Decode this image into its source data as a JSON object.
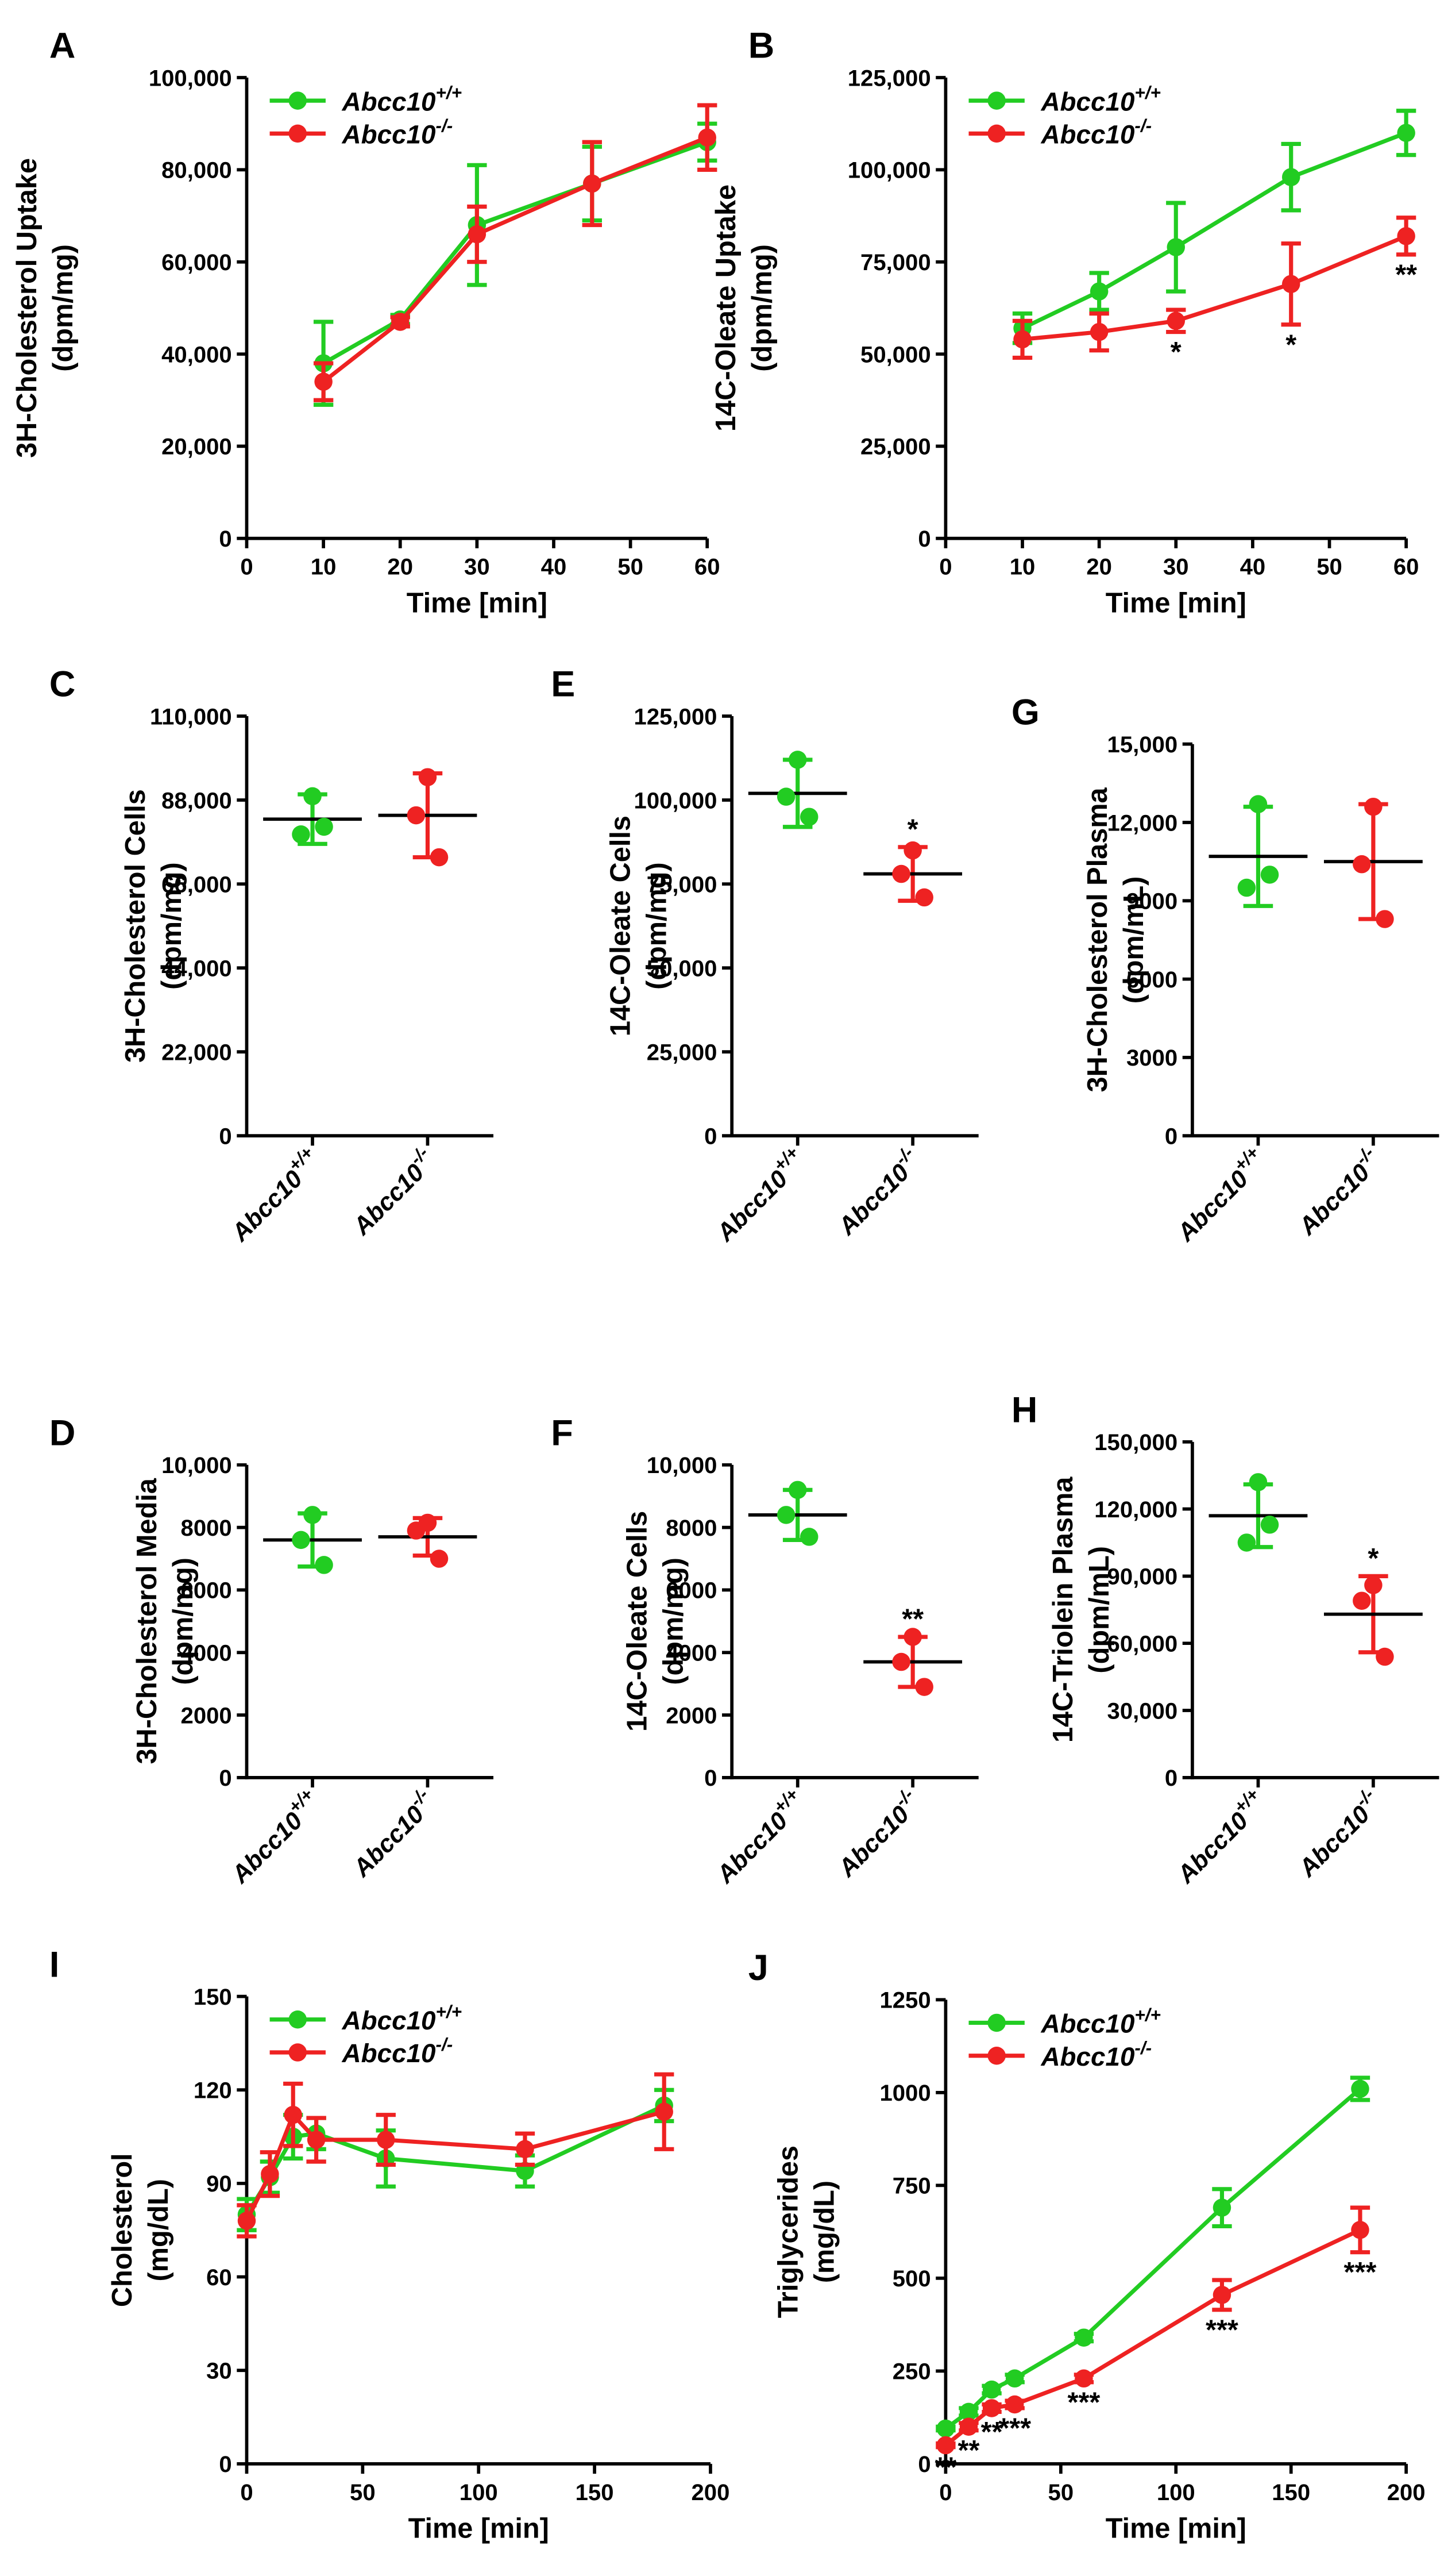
{
  "chart_data": [
    {
      "type": "line",
      "label": "A",
      "ylabel": [
        "3H-Cholesterol Uptake",
        "(dpm/mg)"
      ],
      "xlabel": "Time [min]",
      "x": [
        10,
        20,
        30,
        45,
        60
      ],
      "xlim": [
        0,
        60
      ],
      "xticks": [
        0,
        10,
        20,
        30,
        40,
        50,
        60
      ],
      "ylim": [
        0,
        100000
      ],
      "yticks": [
        0,
        {
          "value": 20000,
          "label": "20,000"
        },
        {
          "value": 40000,
          "label": "40,000"
        },
        {
          "value": 60000,
          "label": "60,000"
        },
        {
          "value": 80000,
          "label": "80,000"
        },
        {
          "value": 100000,
          "label": "100,000"
        }
      ],
      "series": [
        {
          "name": "Abcc10+/+",
          "color": "#22cc22",
          "values": [
            38000,
            47500,
            68000,
            77000,
            86000
          ],
          "errors": [
            9000,
            1000,
            13000,
            8000,
            4000
          ]
        },
        {
          "name": "Abcc10-/-",
          "color": "#ee2222",
          "values": [
            34000,
            47000,
            66000,
            77000,
            87000
          ],
          "errors": [
            4000,
            1000,
            6000,
            9000,
            7000
          ]
        }
      ]
    },
    {
      "type": "line",
      "label": "B",
      "ylabel": [
        "14C-Oleate Uptake",
        "(dpm/mg)"
      ],
      "xlabel": "Time [min]",
      "x": [
        10,
        20,
        30,
        45,
        60
      ],
      "xlim": [
        0,
        60
      ],
      "xticks": [
        0,
        10,
        20,
        30,
        40,
        50,
        60
      ],
      "ylim": [
        0,
        125000
      ],
      "yticks": [
        0,
        {
          "value": 25000,
          "label": "25,000"
        },
        {
          "value": 50000,
          "label": "50,000"
        },
        {
          "value": 75000,
          "label": "75,000"
        },
        {
          "value": 100000,
          "label": "100,000"
        },
        {
          "value": 125000,
          "label": "125,000"
        }
      ],
      "series": [
        {
          "name": "Abcc10+/+",
          "color": "#22cc22",
          "values": [
            57000,
            67000,
            79000,
            98000,
            110000
          ],
          "errors": [
            4000,
            5000,
            12000,
            9000,
            6000
          ]
        },
        {
          "name": "Abcc10-/-",
          "color": "#ee2222",
          "values": [
            54000,
            56000,
            59000,
            69000,
            82000
          ],
          "errors": [
            5000,
            5000,
            3000,
            11000,
            5000
          ],
          "annotations": [
            null,
            null,
            "*",
            "*",
            "**"
          ]
        }
      ]
    },
    {
      "type": "dot",
      "label": "C",
      "ylabel": [
        "3H-Cholesterol Cells",
        "(dpm/mg)"
      ],
      "categories": [
        "Abcc10+/+",
        "Abcc10-/-"
      ],
      "ylim": [
        0,
        110000
      ],
      "yticks": [
        0,
        {
          "value": 22000,
          "label": "22,000"
        },
        {
          "value": 44000,
          "label": "44,000"
        },
        {
          "value": 66000,
          "label": "66,000"
        },
        {
          "value": 88000,
          "label": "88,000"
        },
        {
          "value": 110000,
          "label": "110,000"
        }
      ],
      "groups": [
        {
          "color": "#22cc22",
          "points": [
            89000,
            79000,
            81000
          ],
          "mean": 83000,
          "sd": 6500
        },
        {
          "color": "#ee2222",
          "points": [
            94000,
            84000,
            73000
          ],
          "mean": 84000,
          "sd": 11000
        }
      ]
    },
    {
      "type": "dot",
      "label": "E",
      "ylabel": [
        "14C-Oleate Cells",
        "(dpm/mg)"
      ],
      "categories": [
        "Abcc10+/+",
        "Abcc10-/-"
      ],
      "ylim": [
        0,
        125000
      ],
      "yticks": [
        0,
        {
          "value": 25000,
          "label": "25,000"
        },
        {
          "value": 50000,
          "label": "50,000"
        },
        {
          "value": 75000,
          "label": "75,000"
        },
        {
          "value": 100000,
          "label": "100,000"
        },
        {
          "value": 125000,
          "label": "125,000"
        }
      ],
      "groups": [
        {
          "color": "#22cc22",
          "points": [
            112000,
            101000,
            95000
          ],
          "mean": 102000,
          "sd": 10000
        },
        {
          "color": "#ee2222",
          "points": [
            85000,
            78000,
            71000
          ],
          "mean": 78000,
          "sd": 8000,
          "annotation": "*"
        }
      ]
    },
    {
      "type": "dot",
      "label": "G",
      "ylabel": [
        "3H-Cholesterol Plasma",
        "(dpm/mL)"
      ],
      "categories": [
        "Abcc10+/+",
        "Abcc10-/-"
      ],
      "ylim": [
        0,
        15000
      ],
      "yticks": [
        0,
        3000,
        6000,
        9000,
        {
          "value": 12000,
          "label": "12,000"
        },
        {
          "value": 15000,
          "label": "15,000"
        }
      ],
      "groups": [
        {
          "color": "#22cc22",
          "points": [
            12700,
            9500,
            10000
          ],
          "mean": 10700,
          "sd": 1900
        },
        {
          "color": "#ee2222",
          "points": [
            12600,
            10400,
            8300
          ],
          "mean": 10500,
          "sd": 2200
        }
      ]
    },
    {
      "type": "dot",
      "label": "D",
      "ylabel": [
        "3H-Cholesterol Media",
        "(dpm/mg)"
      ],
      "categories": [
        "Abcc10+/+",
        "Abcc10-/-"
      ],
      "ylim": [
        0,
        10000
      ],
      "yticks": [
        0,
        2000,
        4000,
        6000,
        8000,
        {
          "value": 10000,
          "label": "10,000"
        }
      ],
      "groups": [
        {
          "color": "#22cc22",
          "points": [
            8400,
            7600,
            6800
          ],
          "mean": 7600,
          "sd": 850
        },
        {
          "color": "#ee2222",
          "points": [
            8150,
            7900,
            7000
          ],
          "mean": 7700,
          "sd": 600
        }
      ]
    },
    {
      "type": "dot",
      "label": "F",
      "ylabel": [
        "14C-Oleate Cells",
        "(dpm/mg)"
      ],
      "categories": [
        "Abcc10+/+",
        "Abcc10-/-"
      ],
      "ylim": [
        0,
        10000
      ],
      "yticks": [
        0,
        2000,
        4000,
        6000,
        8000,
        {
          "value": 10000,
          "label": "10,000"
        }
      ],
      "groups": [
        {
          "color": "#22cc22",
          "points": [
            9200,
            8400,
            7700
          ],
          "mean": 8400,
          "sd": 800
        },
        {
          "color": "#ee2222",
          "points": [
            4500,
            3700,
            2900
          ],
          "mean": 3700,
          "sd": 800,
          "annotation": "**"
        }
      ]
    },
    {
      "type": "dot",
      "label": "H",
      "ylabel": [
        "14C-Triolein Plasma",
        "(dpm/mL)"
      ],
      "categories": [
        "Abcc10+/+",
        "Abcc10-/-"
      ],
      "ylim": [
        0,
        150000
      ],
      "yticks": [
        0,
        {
          "value": 30000,
          "label": "30,000"
        },
        {
          "value": 60000,
          "label": "60,000"
        },
        {
          "value": 90000,
          "label": "90,000"
        },
        {
          "value": 120000,
          "label": "120,000"
        },
        {
          "value": 150000,
          "label": "150,000"
        }
      ],
      "groups": [
        {
          "color": "#22cc22",
          "points": [
            132000,
            105000,
            113000
          ],
          "mean": 117000,
          "sd": 14000
        },
        {
          "color": "#ee2222",
          "points": [
            86000,
            79000,
            54000
          ],
          "mean": 73000,
          "sd": 17000,
          "annotation": "*"
        }
      ]
    },
    {
      "type": "line",
      "label": "I",
      "ylabel": [
        "Cholesterol",
        "(mg/dL)"
      ],
      "xlabel": "Time [min]",
      "x": [
        0,
        10,
        20,
        30,
        60,
        120,
        180
      ],
      "xlim": [
        0,
        200
      ],
      "xticks": [
        0,
        50,
        100,
        150,
        200
      ],
      "ylim": [
        0,
        150
      ],
      "yticks": [
        0,
        30,
        60,
        90,
        120,
        150
      ],
      "series": [
        {
          "name": "Abcc10+/+",
          "color": "#22cc22",
          "values": [
            80,
            92,
            105,
            106,
            98,
            94,
            115
          ],
          "errors": [
            5,
            5,
            7,
            5,
            9,
            5,
            5
          ]
        },
        {
          "name": "Abcc10-/-",
          "color": "#ee2222",
          "values": [
            78,
            93,
            112,
            104,
            104,
            101,
            113
          ],
          "errors": [
            5,
            7,
            10,
            7,
            8,
            5,
            12
          ]
        }
      ]
    },
    {
      "type": "line",
      "label": "J",
      "ylabel": [
        "Triglycerides",
        "(mg/dL)"
      ],
      "xlabel": "Time [min]",
      "x": [
        0,
        10,
        20,
        30,
        60,
        120,
        180
      ],
      "xlim": [
        0,
        200
      ],
      "xticks": [
        0,
        50,
        100,
        150,
        200
      ],
      "ylim": [
        0,
        1250
      ],
      "yticks": [
        0,
        250,
        500,
        750,
        1000,
        1250
      ],
      "series": [
        {
          "name": "Abcc10+/+",
          "color": "#22cc22",
          "values": [
            95,
            140,
            200,
            230,
            340,
            690,
            1010
          ],
          "errors": [
            5,
            10,
            10,
            10,
            10,
            50,
            30
          ]
        },
        {
          "name": "Abcc10-/-",
          "color": "#ee2222",
          "values": [
            50,
            100,
            150,
            160,
            230,
            455,
            630
          ],
          "errors": [
            5,
            10,
            10,
            10,
            10,
            40,
            60
          ],
          "annotations": [
            "**",
            "**",
            "**",
            "***",
            "***",
            "***",
            "***"
          ]
        }
      ]
    }
  ]
}
